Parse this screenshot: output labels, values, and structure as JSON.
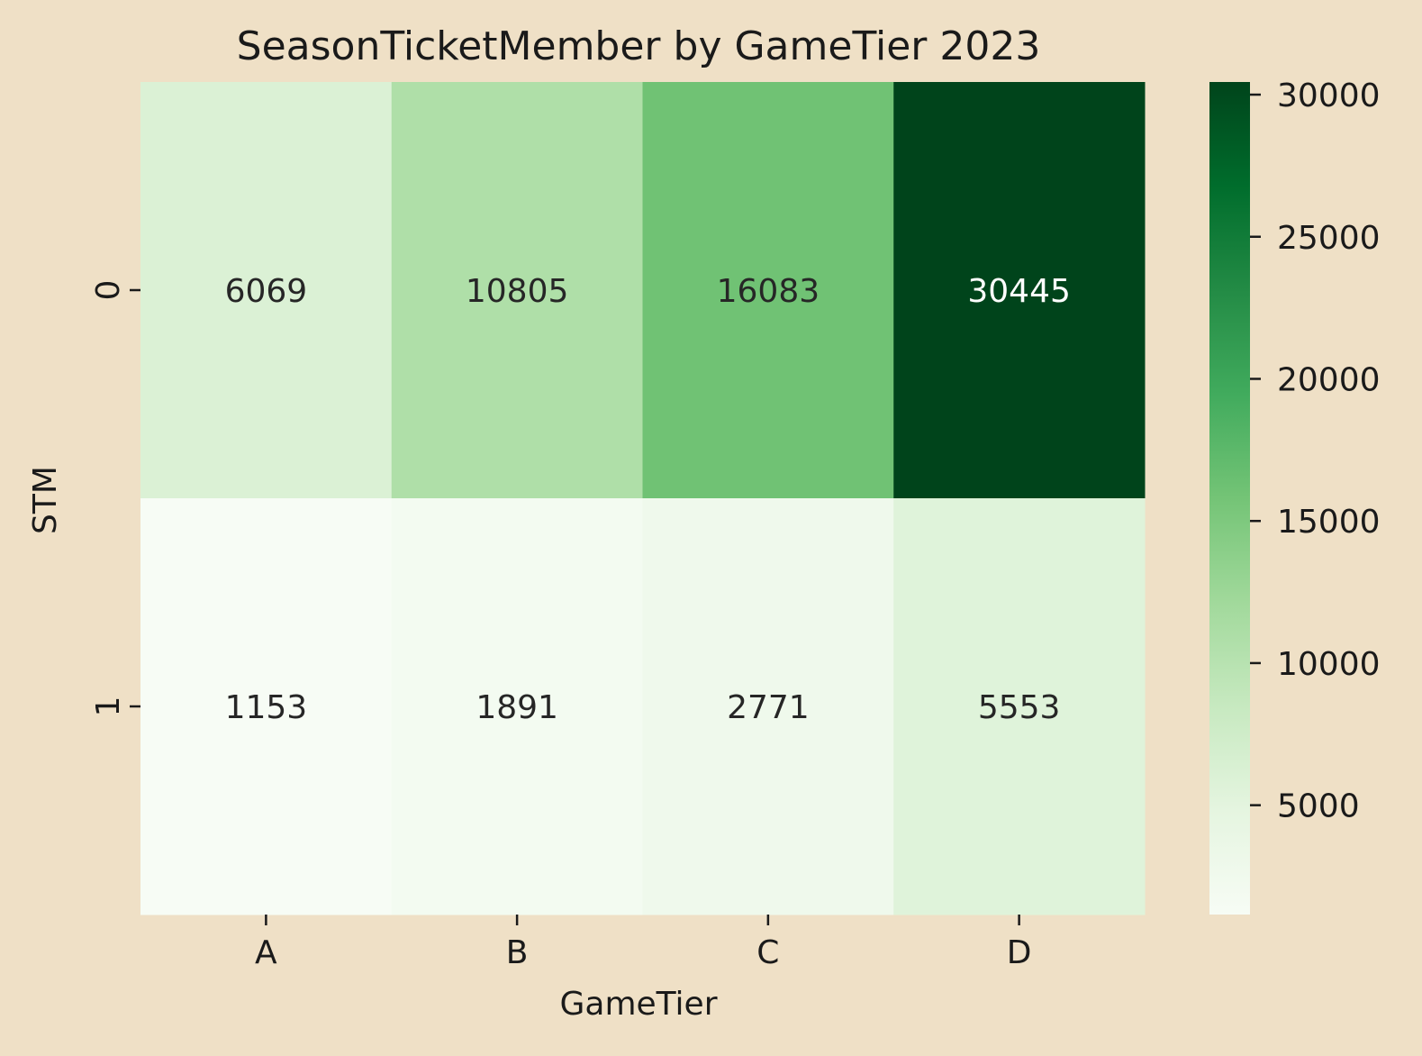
{
  "chart_data": {
    "type": "heatmap",
    "title": "SeasonTicketMember by GameTier 2023",
    "xlabel": "GameTier",
    "ylabel": "STM",
    "x_categories": [
      "A",
      "B",
      "C",
      "D"
    ],
    "y_categories": [
      "0",
      "1"
    ],
    "values": [
      [
        6069,
        10805,
        16083,
        30445
      ],
      [
        1153,
        1891,
        2771,
        5553
      ]
    ],
    "colormap": "Greens",
    "colorbar": {
      "range": [
        1153,
        30445
      ],
      "ticks": [
        5000,
        10000,
        15000,
        20000,
        25000,
        30000
      ],
      "tick_labels": [
        "5000",
        "10000",
        "15000",
        "20000",
        "25000",
        "30000"
      ]
    },
    "annotations": true,
    "colors": {
      "background": "#efe0c6",
      "annotation_dark": "#262626",
      "annotation_light": "#ffffff"
    }
  }
}
